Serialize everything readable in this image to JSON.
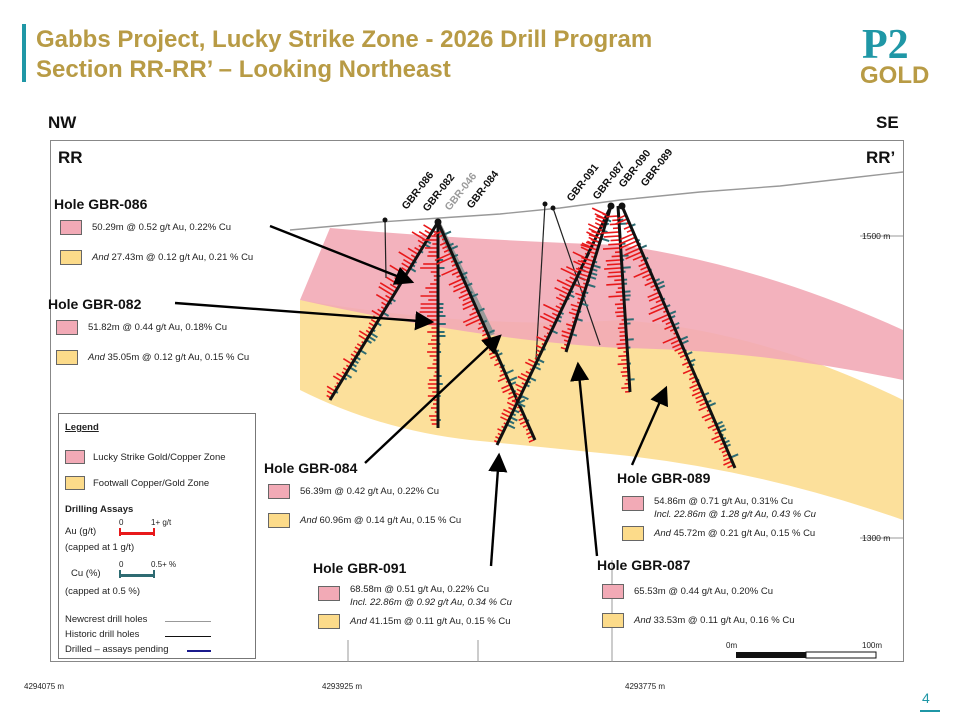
{
  "title_line1": "Gabbs Project, Lucky Strike Zone - 2026 Drill Program",
  "title_line2": "Section RR-RR’ – Looking Northeast",
  "logo": {
    "top": "P2",
    "bottom": "GOLD"
  },
  "directions": {
    "left": "NW",
    "right": "SE"
  },
  "section": {
    "left": "RR",
    "right": "RR’"
  },
  "collars": [
    "GBR-086",
    "GBR-082",
    "GBR-046",
    "GBR-084",
    "GBR-091",
    "GBR-087",
    "GBR-090",
    "GBR-089"
  ],
  "holes": {
    "gbr086": {
      "title": "Hole GBR-086",
      "line1": "50.29m @  0.52 g/t Au, 0.22% Cu",
      "line2_and": "And",
      "line2": " 27.43m @  0.12 g/t Au, 0.21 % Cu"
    },
    "gbr082": {
      "title": "Hole GBR-082",
      "line1": "51.82m @  0.44 g/t Au, 0.18% Cu",
      "line2_and": "And",
      "line2": " 35.05m @  0.12 g/t Au, 0.15 % Cu"
    },
    "gbr084": {
      "title": "Hole GBR-084",
      "line1": "56.39m @  0.42 g/t Au, 0.22% Cu",
      "line2_and": "And",
      "line2": " 60.96m @  0.14 g/t Au, 0.15 % Cu"
    },
    "gbr091": {
      "title": "Hole GBR-091",
      "line1": "68.58m @  0.51 g/t Au, 0.22% Cu",
      "incl": "Incl. 22.86m @ 0.92 g/t Au, 0.34 % Cu",
      "line2_and": "And",
      "line2": " 41.15m @  0.11 g/t Au, 0.15 % Cu"
    },
    "gbr089": {
      "title": "Hole GBR-089",
      "line1": "54.86m @  0.71 g/t Au, 0.31% Cu",
      "incl": "Incl. 22.86m @ 1.28 g/t Au, 0.43 % Cu",
      "line2_and": "And",
      "line2": " 45.72m @  0.21 g/t Au, 0.15 % Cu"
    },
    "gbr087": {
      "title": "Hole GBR-087",
      "line1": "65.53m @  0.44 g/t Au, 0.20% Cu",
      "line2_and": "And",
      "line2": " 33.53m @  0.11 g/t Au, 0.16 % Cu"
    }
  },
  "legend": {
    "title": "Legend",
    "zone1": "Lucky Strike Gold/Copper Zone",
    "zone2": "Footwall Copper/Gold Zone",
    "assays_title": "Drilling Assays",
    "au_label": "Au (g/t)",
    "au_min": "0",
    "au_max": "1+ g/t",
    "au_cap": "(capped at 1 g/t)",
    "cu_label": "Cu (%)",
    "cu_min": "0",
    "cu_max": "0.5+ %",
    "cu_cap": "(capped at 0.5 %)",
    "newcrest": "Newcrest drill holes",
    "historic": "Historic drill holes",
    "pending": "Drilled – assays pending"
  },
  "elevations": {
    "e1500": "1500 m",
    "e1300": "1300 m"
  },
  "eastings": {
    "e1": "4294075 m",
    "e2": "4293925 m",
    "e3": "4293775 m"
  },
  "scale": {
    "min": "0m",
    "max": "100m"
  },
  "page_number": "4",
  "colors": {
    "accent": "#1f97a6",
    "title": "#b89b45",
    "au": "#e8191b",
    "cu": "#2e6b72",
    "zone_pink": "#f2aab6",
    "zone_yellow": "#fcdb8a"
  }
}
